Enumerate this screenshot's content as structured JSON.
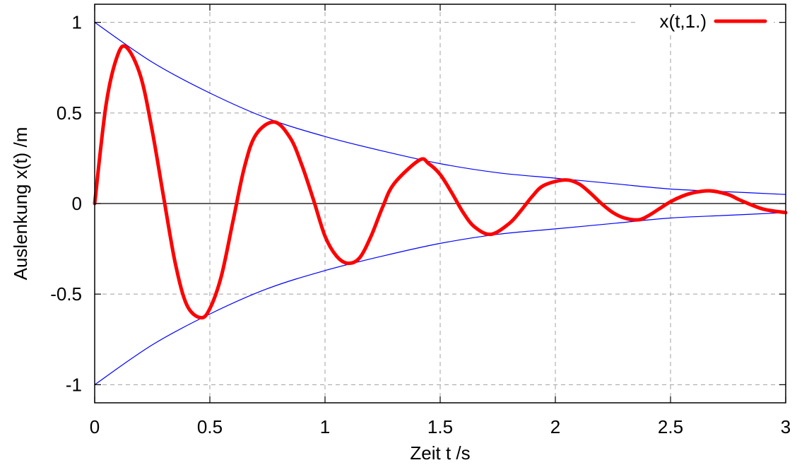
{
  "chart_data": {
    "type": "line",
    "title": "",
    "xlabel": "Zeit t /s",
    "ylabel": "Auslenkung x(t) /m",
    "xlim": [
      0,
      3
    ],
    "ylim": [
      -1.1,
      1.1
    ],
    "x_ticks": [
      0,
      0.5,
      1,
      1.5,
      2,
      2.5,
      3
    ],
    "x_tick_labels": [
      "0",
      "0.5",
      "1",
      "1.5",
      "2",
      "2.5",
      "3"
    ],
    "y_ticks": [
      1,
      0.5,
      0,
      -0.5,
      -1
    ],
    "y_tick_labels": [
      "1",
      "0.5",
      "0",
      "-0.5",
      "-1"
    ],
    "grid": true,
    "legend_position": "top-right",
    "series": [
      {
        "name": "x(t,1.)",
        "color": "#ff0000",
        "x": [
          0,
          0.05,
          0.1,
          0.14,
          0.2,
          0.25,
          0.3,
          0.35,
          0.4,
          0.46,
          0.5,
          0.55,
          0.6,
          0.65,
          0.7,
          0.78,
          0.85,
          0.9,
          0.95,
          1.0,
          1.05,
          1.1,
          1.15,
          1.2,
          1.25,
          1.3,
          1.41,
          1.45,
          1.5,
          1.55,
          1.6,
          1.65,
          1.72,
          1.8,
          1.85,
          1.9,
          1.95,
          2.04,
          2.1,
          2.15,
          2.2,
          2.25,
          2.3,
          2.36,
          2.4,
          2.45,
          2.5,
          2.55,
          2.6,
          2.67,
          2.75,
          2.8,
          2.9,
          3.0
        ],
        "y": [
          0,
          0.55,
          0.82,
          0.86,
          0.7,
          0.4,
          0.03,
          -0.33,
          -0.56,
          -0.63,
          -0.58,
          -0.4,
          -0.1,
          0.2,
          0.38,
          0.45,
          0.36,
          0.21,
          0.02,
          -0.18,
          -0.29,
          -0.33,
          -0.3,
          -0.18,
          -0.02,
          0.11,
          0.24,
          0.22,
          0.16,
          0.06,
          -0.05,
          -0.13,
          -0.17,
          -0.11,
          -0.04,
          0.04,
          0.1,
          0.13,
          0.11,
          0.06,
          0.0,
          -0.05,
          -0.08,
          -0.09,
          -0.07,
          -0.03,
          0.01,
          0.04,
          0.06,
          0.07,
          0.05,
          0.02,
          -0.03,
          -0.05
        ]
      },
      {
        "name": "",
        "color": "#0000ff",
        "x": [
          0,
          0.25,
          0.5,
          0.75,
          1.0,
          1.25,
          1.5,
          1.75,
          2.0,
          2.25,
          2.5,
          2.75,
          3.0
        ],
        "y": [
          1,
          0.78,
          0.61,
          0.47,
          0.37,
          0.29,
          0.22,
          0.17,
          0.14,
          0.11,
          0.08,
          0.065,
          0.05
        ]
      },
      {
        "name": "",
        "color": "#0000ff",
        "x": [
          0,
          0.25,
          0.5,
          0.75,
          1.0,
          1.25,
          1.5,
          1.75,
          2.0,
          2.25,
          2.5,
          2.75,
          3.0
        ],
        "y": [
          -1,
          -0.78,
          -0.61,
          -0.47,
          -0.37,
          -0.29,
          -0.22,
          -0.17,
          -0.14,
          -0.11,
          -0.08,
          -0.065,
          -0.05
        ]
      }
    ]
  }
}
